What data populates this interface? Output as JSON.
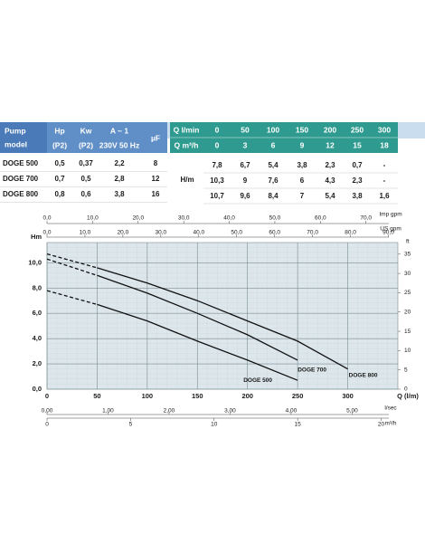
{
  "table": {
    "model_header": [
      "Pump",
      "model"
    ],
    "columns": [
      "Hp",
      "Kw",
      "A ~ 1",
      "µF"
    ],
    "subcolumns": [
      "(P2)",
      "(P2)",
      "230V 50 Hz"
    ],
    "q_lmin_label": "Q l/min",
    "q_m3h_label": "Q m³/h",
    "q_lmin": [
      "0",
      "50",
      "100",
      "150",
      "200",
      "250",
      "300"
    ],
    "q_m3h": [
      "0",
      "3",
      "6",
      "9",
      "12",
      "15",
      "18"
    ],
    "head_label": "H/m",
    "rows": [
      {
        "model": "DOGE 500",
        "specs": [
          "0,5",
          "0,37",
          "2,2",
          "8"
        ],
        "head": [
          "7,8",
          "6,7",
          "5,4",
          "3,8",
          "2,3",
          "0,7",
          "-"
        ]
      },
      {
        "model": "DOGE 700",
        "specs": [
          "0,7",
          "0,5",
          "2,8",
          "12"
        ],
        "head": [
          "10,3",
          "9",
          "7,6",
          "6",
          "4,3",
          "2,3",
          "-"
        ]
      },
      {
        "model": "DOGE 800",
        "specs": [
          "0,8",
          "0,6",
          "3,8",
          "16"
        ],
        "head": [
          "10,7",
          "9,6",
          "8,4",
          "7",
          "5,4",
          "3,8",
          "1,6"
        ]
      }
    ]
  },
  "chart_data": {
    "type": "line",
    "xlabel": "Q (l/m)",
    "ylabel": "Hm",
    "y2label": "ft",
    "x": [
      0,
      50,
      100,
      150,
      200,
      250,
      300
    ],
    "xlim": [
      0,
      350
    ],
    "xticks": [
      0,
      50,
      100,
      150,
      200,
      250,
      300
    ],
    "ylim": [
      0,
      11.6
    ],
    "yticks": [
      {
        "value": 0,
        "label": "0,0"
      },
      {
        "value": 2,
        "label": "2,0"
      },
      {
        "value": 4,
        "label": "4,0"
      },
      {
        "value": 6,
        "label": "6,0"
      },
      {
        "value": 8,
        "label": "8,0"
      },
      {
        "value": 10,
        "label": "10,0"
      }
    ],
    "y2lim": [
      0,
      38
    ],
    "y2ticks": [
      0,
      5,
      10,
      15,
      20,
      25,
      30,
      35
    ],
    "grid": true,
    "series": [
      {
        "name": "DOGE 500",
        "color": "#111111",
        "values": [
          7.8,
          6.7,
          5.4,
          3.8,
          2.3,
          0.7,
          null
        ]
      },
      {
        "name": "DOGE 700",
        "color": "#111111",
        "values": [
          10.3,
          9,
          7.6,
          6,
          4.3,
          2.3,
          null
        ]
      },
      {
        "name": "DOGE 800",
        "color": "#111111",
        "values": [
          10.7,
          9.6,
          8.4,
          7,
          5.4,
          3.8,
          1.6
        ]
      }
    ],
    "top_axes": [
      {
        "label": "Imp gpm",
        "lim": [
          0,
          77
        ],
        "ticks": [
          {
            "value": 0,
            "label": "0,0"
          },
          {
            "value": 10,
            "label": "10,0"
          },
          {
            "value": 20,
            "label": "20,0"
          },
          {
            "value": 30,
            "label": "30,0"
          },
          {
            "value": 40,
            "label": "40,0"
          },
          {
            "value": 50,
            "label": "50,0"
          },
          {
            "value": 60,
            "label": "60,0"
          },
          {
            "value": 70,
            "label": "70,0"
          }
        ]
      },
      {
        "label": "US gpm",
        "lim": [
          0,
          92.5
        ],
        "ticks": [
          {
            "value": 0,
            "label": "0,0"
          },
          {
            "value": 10,
            "label": "10,0"
          },
          {
            "value": 20,
            "label": "20,0"
          },
          {
            "value": 30,
            "label": "30,0"
          },
          {
            "value": 40,
            "label": "40,0"
          },
          {
            "value": 50,
            "label": "50,0"
          },
          {
            "value": 60,
            "label": "60,0"
          },
          {
            "value": 70,
            "label": "70,0"
          },
          {
            "value": 80,
            "label": "80,0"
          },
          {
            "value": 90,
            "label": "90,0"
          }
        ]
      }
    ],
    "bottom_axes": [
      {
        "label": "l/sec",
        "lim": [
          0,
          5.75
        ],
        "ticks": [
          {
            "value": 0,
            "label": "0,00"
          },
          {
            "value": 1,
            "label": "1,00"
          },
          {
            "value": 2,
            "label": "2,00"
          },
          {
            "value": 3,
            "label": "3,00"
          },
          {
            "value": 4,
            "label": "4,00"
          },
          {
            "value": 5,
            "label": "5,00"
          }
        ]
      },
      {
        "label": "m³/h",
        "lim": [
          0,
          21
        ],
        "ticks": [
          0,
          5,
          10,
          15,
          20
        ]
      }
    ]
  }
}
